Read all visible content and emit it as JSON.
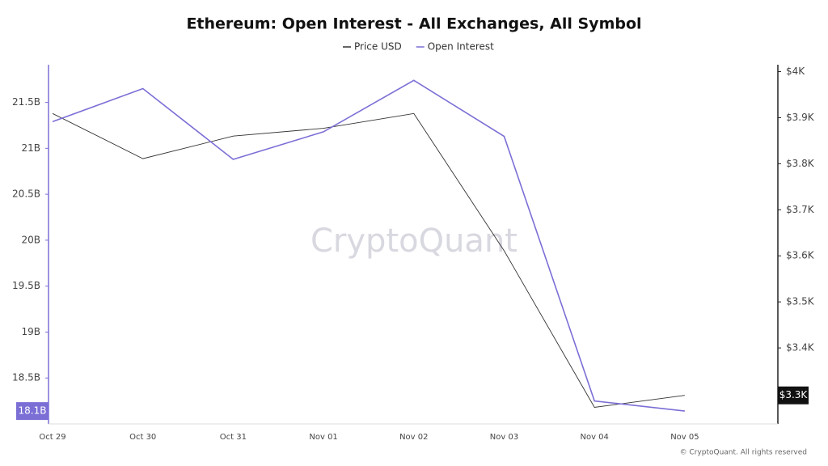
{
  "chart_data": {
    "type": "line",
    "title": "Ethereum: Open Interest - All Exchanges, All Symbol",
    "watermark": "CryptoQuant",
    "credit": "© CryptoQuant. All rights reserved",
    "categories": [
      "Oct 29",
      "Oct 30",
      "Oct 31",
      "Nov 01",
      "Nov 02",
      "Nov 03",
      "Nov 04",
      "Nov 05"
    ],
    "series": [
      {
        "name": "Price USD",
        "color": "#333333",
        "axis": "y2",
        "values": [
          3909,
          3811,
          3860,
          3877,
          3909,
          3611,
          3271,
          3297
        ],
        "last_label": "$3.3K"
      },
      {
        "name": "Open Interest",
        "color": "#7b6fd6",
        "values": [
          21290000000,
          21650000000,
          20880000000,
          21180000000,
          21740000000,
          21130000000,
          18250000000,
          18140000000
        ],
        "last_label": "18.1B"
      }
    ],
    "ylim": [
      18000000000,
      21910000000
    ],
    "yticks": [
      {
        "value": 18500000000,
        "label": "18.5B"
      },
      {
        "value": 19000000000,
        "label": "19B"
      },
      {
        "value": 19500000000,
        "label": "19.5B"
      },
      {
        "value": 20000000000,
        "label": "20B"
      },
      {
        "value": 20500000000,
        "label": "20.5B"
      },
      {
        "value": 21000000000,
        "label": "21B"
      },
      {
        "value": 21500000000,
        "label": "21.5B"
      }
    ],
    "y2lim": [
      3235,
      4015
    ],
    "y2ticks": [
      {
        "value": 3400,
        "label": "$3.4K"
      },
      {
        "value": 3500,
        "label": "$3.5K"
      },
      {
        "value": 3600,
        "label": "$3.6K"
      },
      {
        "value": 3700,
        "label": "$3.7K"
      },
      {
        "value": 3800,
        "label": "$3.8K"
      },
      {
        "value": 3900,
        "label": "$3.9K"
      },
      {
        "value": 4000,
        "label": "$4K"
      }
    ]
  }
}
